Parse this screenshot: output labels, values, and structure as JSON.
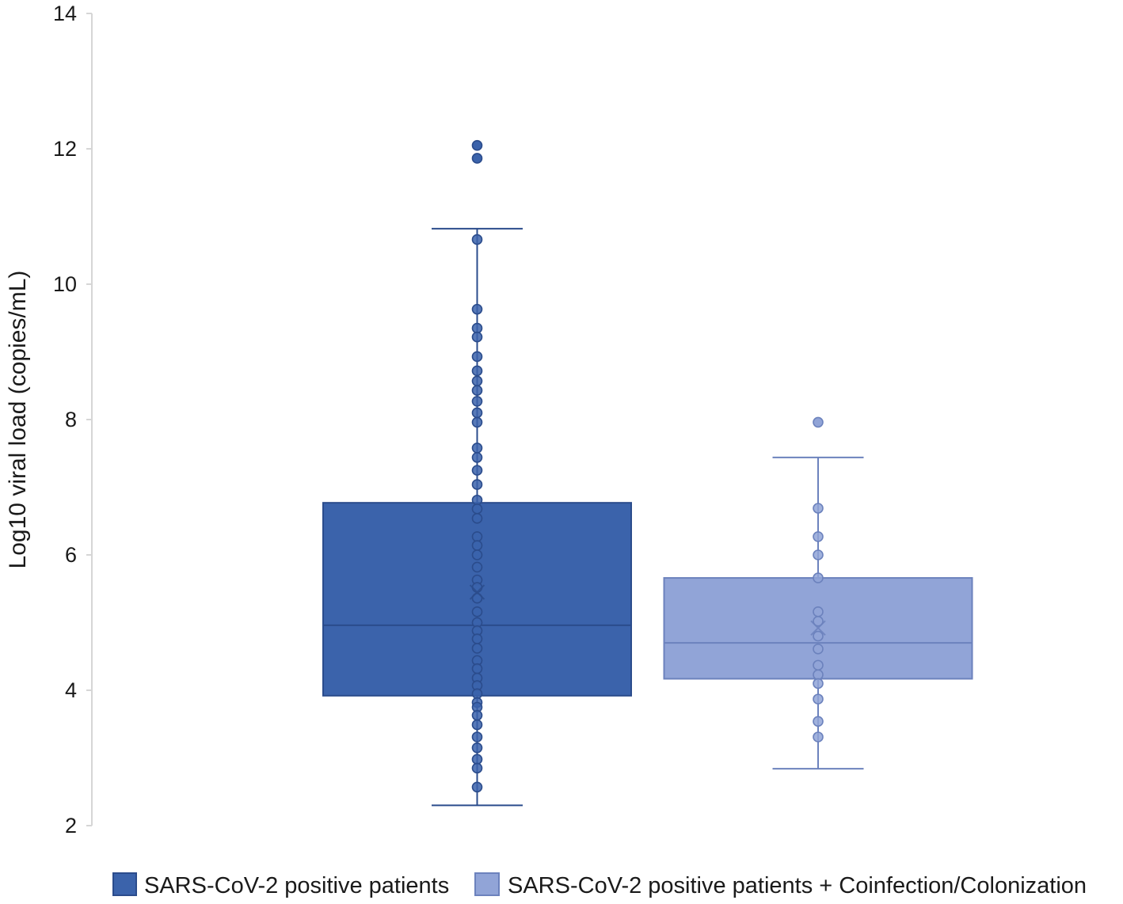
{
  "chart_data": {
    "type": "box",
    "ylabel": "Log10 viral load (copies/mL)",
    "ylim": [
      2,
      14
    ],
    "yticks": [
      2,
      4,
      6,
      8,
      10,
      12,
      14
    ],
    "grid": false,
    "legend": "bottom",
    "series": [
      {
        "name": "SARS-CoV-2 positive patients",
        "color": "#3b63ab",
        "edge": "#2b4c8c",
        "whisker_low": 2.3,
        "q1": 3.92,
        "median": 4.96,
        "q3": 6.77,
        "whisker_high": 10.82,
        "mean": 5.45,
        "points": [
          10.66,
          9.63,
          9.35,
          9.22,
          8.93,
          8.72,
          8.57,
          8.43,
          8.27,
          8.1,
          7.96,
          7.58,
          7.44,
          7.25,
          7.04,
          6.81,
          6.68,
          6.54,
          6.27,
          6.14,
          6.0,
          5.82,
          5.63,
          5.52,
          5.36,
          5.16,
          5.0,
          4.88,
          4.76,
          4.62,
          4.44,
          4.32,
          4.18,
          4.07,
          3.95,
          3.82,
          3.75,
          3.63,
          3.49,
          3.31,
          3.15,
          2.98,
          2.85,
          2.57
        ],
        "outliers": [
          12.05,
          11.86
        ]
      },
      {
        "name": "SARS-CoV-2 positive patients + Coinfection/Colonization",
        "color": "#91a4d7",
        "edge": "#6c82bd",
        "whisker_low": 2.84,
        "q1": 4.17,
        "median": 4.7,
        "q3": 5.66,
        "whisker_high": 7.44,
        "mean": 4.92,
        "points": [
          6.69,
          6.27,
          6.0,
          5.66,
          5.16,
          5.02,
          4.8,
          4.61,
          4.37,
          4.23,
          4.1,
          3.87,
          3.54,
          3.31
        ],
        "outliers": [
          7.96
        ]
      }
    ]
  }
}
